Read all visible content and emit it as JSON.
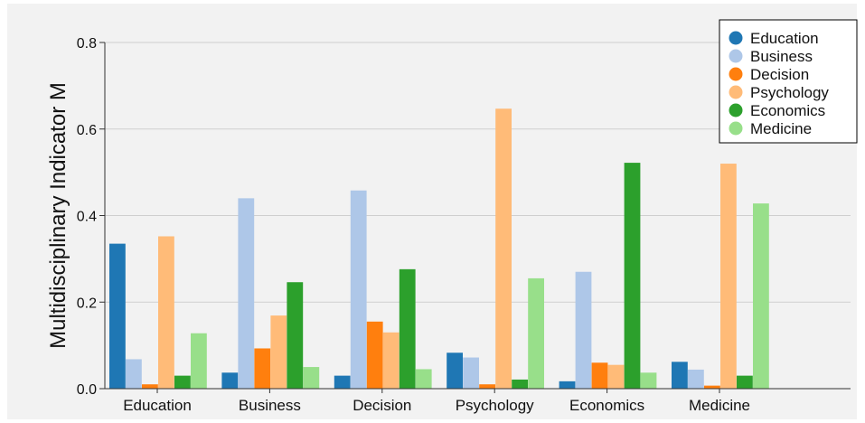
{
  "chart_data": {
    "type": "bar",
    "title": "",
    "xlabel": "",
    "ylabel": "Multidisciplinary Indicator M",
    "ylim": [
      0,
      0.8
    ],
    "yticks": [
      "0.0",
      "0.2",
      "0.4",
      "0.6",
      "0.8"
    ],
    "grid": true,
    "legend_position": "top-right",
    "categories": [
      "Education",
      "Business",
      "Decision",
      "Psychology",
      "Economics",
      "Medicine"
    ],
    "series": [
      {
        "name": "Education",
        "color": "#1f77b4",
        "values": [
          0.335,
          0.037,
          0.03,
          0.083,
          0.017,
          0.062
        ]
      },
      {
        "name": "Business",
        "color": "#aec7e8",
        "values": [
          0.068,
          0.44,
          0.458,
          0.072,
          0.27,
          0.044
        ]
      },
      {
        "name": "Decision",
        "color": "#ff7f0e",
        "values": [
          0.01,
          0.093,
          0.155,
          0.01,
          0.06,
          0.007
        ]
      },
      {
        "name": "Psychology",
        "color": "#ffbb78",
        "values": [
          0.352,
          0.169,
          0.13,
          0.647,
          0.055,
          0.52
        ]
      },
      {
        "name": "Economics",
        "color": "#2ca02c",
        "values": [
          0.03,
          0.246,
          0.276,
          0.021,
          0.522,
          0.03
        ]
      },
      {
        "name": "Medicine",
        "color": "#98df8a",
        "values": [
          0.128,
          0.05,
          0.045,
          0.255,
          0.037,
          0.428
        ]
      }
    ]
  }
}
